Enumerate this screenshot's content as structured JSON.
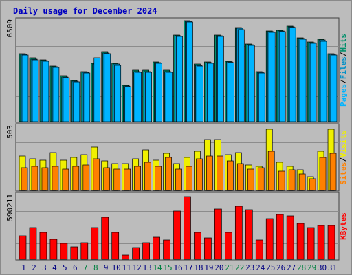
{
  "chart_data": {
    "type": "bar",
    "title": "Daily usage for December 2024",
    "categories": [
      "1",
      "2",
      "3",
      "4",
      "5",
      "6",
      "7",
      "8",
      "9",
      "10",
      "11",
      "12",
      "13",
      "14",
      "15",
      "16",
      "17",
      "18",
      "19",
      "20",
      "21",
      "22",
      "23",
      "24",
      "25",
      "26",
      "27",
      "28",
      "29",
      "30",
      "31"
    ],
    "weekend_days": [
      "7",
      "8",
      "14",
      "15",
      "21",
      "22",
      "28",
      "29"
    ],
    "panels": [
      {
        "name": "hits-files-pages",
        "ymax_label": "6509",
        "ylim": [
          0,
          6509
        ],
        "side_labels": [
          "Pages",
          "Files",
          "Hits"
        ],
        "series": [
          {
            "name": "Hits",
            "color": "#008f6b",
            "values": [
              4400,
              4100,
              4000,
              3600,
              2950,
              2650,
              3250,
              3750,
              4500,
              3750,
              2350,
              3300,
              3300,
              3850,
              3300,
              5600,
              6500,
              3700,
              3850,
              5600,
              3900,
              6050,
              5000,
              3250,
              5850,
              5900,
              6150,
              5400,
              5150,
              5300,
              4400
            ]
          },
          {
            "name": "Files",
            "color": "#0090c8",
            "values": [
              4350,
              4050,
              3950,
              3550,
              2900,
              2600,
              3200,
              3700,
              4450,
              3700,
              2300,
              3250,
              3250,
              3800,
              3250,
              5550,
              6450,
              3650,
              3800,
              5550,
              3850,
              6000,
              4950,
              3200,
              5800,
              5850,
              6100,
              5350,
              5100,
              5250,
              4350
            ]
          },
          {
            "name": "Pages",
            "color": "#00b4ff",
            "values": [
              4300,
              4000,
              3900,
              3500,
              2850,
              2550,
              3150,
              4100,
              4400,
              3650,
              2250,
              3200,
              3200,
              3750,
              3200,
              5500,
              6400,
              3600,
              3750,
              5500,
              3800,
              5950,
              4900,
              3150,
              5750,
              5800,
              6050,
              5300,
              5050,
              5200,
              4300
            ]
          }
        ]
      },
      {
        "name": "visits-sites",
        "ymax_label": "503",
        "ylim": [
          0,
          503
        ],
        "side_labels": [
          "Sites",
          "Visits"
        ],
        "series": [
          {
            "name": "Visits",
            "color": "#f0f000",
            "values": [
              270,
              250,
              240,
              300,
              240,
              260,
              280,
              340,
              230,
              210,
              210,
              250,
              320,
              240,
              290,
              210,
              260,
              310,
              400,
              400,
              280,
              300,
              200,
              190,
              480,
              220,
              190,
              160,
              110,
              310,
              480
            ]
          },
          {
            "name": "Sites",
            "color": "#ff8000",
            "values": [
              180,
              190,
              180,
              190,
              170,
              190,
              200,
              250,
              180,
              170,
              170,
              190,
              220,
              190,
              260,
              170,
              190,
              250,
              270,
              270,
              230,
              210,
              170,
              180,
              310,
              150,
              160,
              130,
              90,
              260,
              290
            ]
          }
        ]
      },
      {
        "name": "kbytes",
        "ymax_label": "590211",
        "ylim": [
          0,
          590211
        ],
        "side_labels": [
          "KBytes"
        ],
        "series": [
          {
            "name": "KBytes",
            "color": "#ff0000",
            "values": [
              215000,
              295000,
              250000,
              185000,
              145000,
              115000,
              150000,
              290000,
              385000,
              250000,
              35000,
              110000,
              150000,
              205000,
              175000,
              445000,
              575000,
              245000,
              195000,
              465000,
              250000,
              490000,
              455000,
              180000,
              375000,
              410000,
              400000,
              330000,
              295000,
              310000,
              310000
            ]
          }
        ]
      }
    ]
  }
}
